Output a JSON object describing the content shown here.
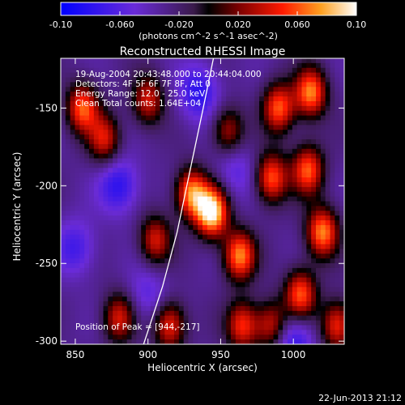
{
  "chart_data": {
    "type": "heatmap",
    "title": "Reconstructed RHESSI Image",
    "xlabel": "Heliocentric X (arcsec)",
    "ylabel": "Heliocentric Y (arcsec)",
    "xlim": [
      840,
      1035
    ],
    "ylim": [
      -302,
      -118
    ],
    "xticks": [
      850,
      900,
      950,
      1000
    ],
    "yticks": [
      -150,
      -200,
      -250,
      -300
    ],
    "colorbar": {
      "min": -0.1,
      "max": 0.1,
      "ticks": [
        "-0.10",
        "-0.060",
        "-0.020",
        "0.020",
        "0.060",
        "0.10"
      ],
      "label": "(photons cm^-2 s^-1 asec^-2)"
    },
    "annotations": [
      "19-Aug-2004 20:43:48.000 to 20:44:04.000",
      "Detectors: 4F 5F 6F 7F 8F, Att 0",
      "Energy Range: 12.0 - 25.0 keV",
      "Clean    Total counts: 1.64E+04"
    ],
    "peak": {
      "label": "Position of Peak = [944,-217]",
      "x": 944,
      "y": -217
    },
    "sources": [
      {
        "x": 944,
        "y": -217,
        "amp": 0.1
      },
      {
        "x": 930,
        "y": -205,
        "amp": 0.07
      },
      {
        "x": 963,
        "y": -245,
        "amp": 0.07
      },
      {
        "x": 985,
        "y": -195,
        "amp": 0.06
      },
      {
        "x": 990,
        "y": -150,
        "amp": 0.06
      },
      {
        "x": 1012,
        "y": -140,
        "amp": 0.07
      },
      {
        "x": 1010,
        "y": -190,
        "amp": 0.06
      },
      {
        "x": 1020,
        "y": -230,
        "amp": 0.07
      },
      {
        "x": 1005,
        "y": -270,
        "amp": 0.06
      },
      {
        "x": 855,
        "y": -150,
        "amp": 0.06
      },
      {
        "x": 870,
        "y": -170,
        "amp": 0.04
      },
      {
        "x": 900,
        "y": -145,
        "amp": 0.04
      },
      {
        "x": 905,
        "y": -235,
        "amp": 0.04
      },
      {
        "x": 915,
        "y": -290,
        "amp": 0.05
      },
      {
        "x": 880,
        "y": -285,
        "amp": 0.04
      },
      {
        "x": 965,
        "y": -290,
        "amp": 0.05
      },
      {
        "x": 985,
        "y": -290,
        "amp": 0.04
      },
      {
        "x": 955,
        "y": -165,
        "amp": 0.03
      },
      {
        "x": 1030,
        "y": -290,
        "amp": 0.05
      }
    ],
    "negatives": [
      {
        "x": 880,
        "y": -200,
        "amp": 0.05
      },
      {
        "x": 935,
        "y": -140,
        "amp": 0.05
      },
      {
        "x": 850,
        "y": -240,
        "amp": 0.04
      },
      {
        "x": 900,
        "y": -270,
        "amp": 0.03
      },
      {
        "x": 1000,
        "y": -300,
        "amp": 0.05
      },
      {
        "x": 960,
        "y": -190,
        "amp": 0.03
      }
    ],
    "limb": [
      [
        945,
        -118
      ],
      [
        938,
        -150
      ],
      [
        929,
        -190
      ],
      [
        920,
        -230
      ],
      [
        910,
        -265
      ],
      [
        897,
        -302
      ]
    ]
  },
  "footer": {
    "timestamp": "22-Jun-2013 21:12"
  }
}
